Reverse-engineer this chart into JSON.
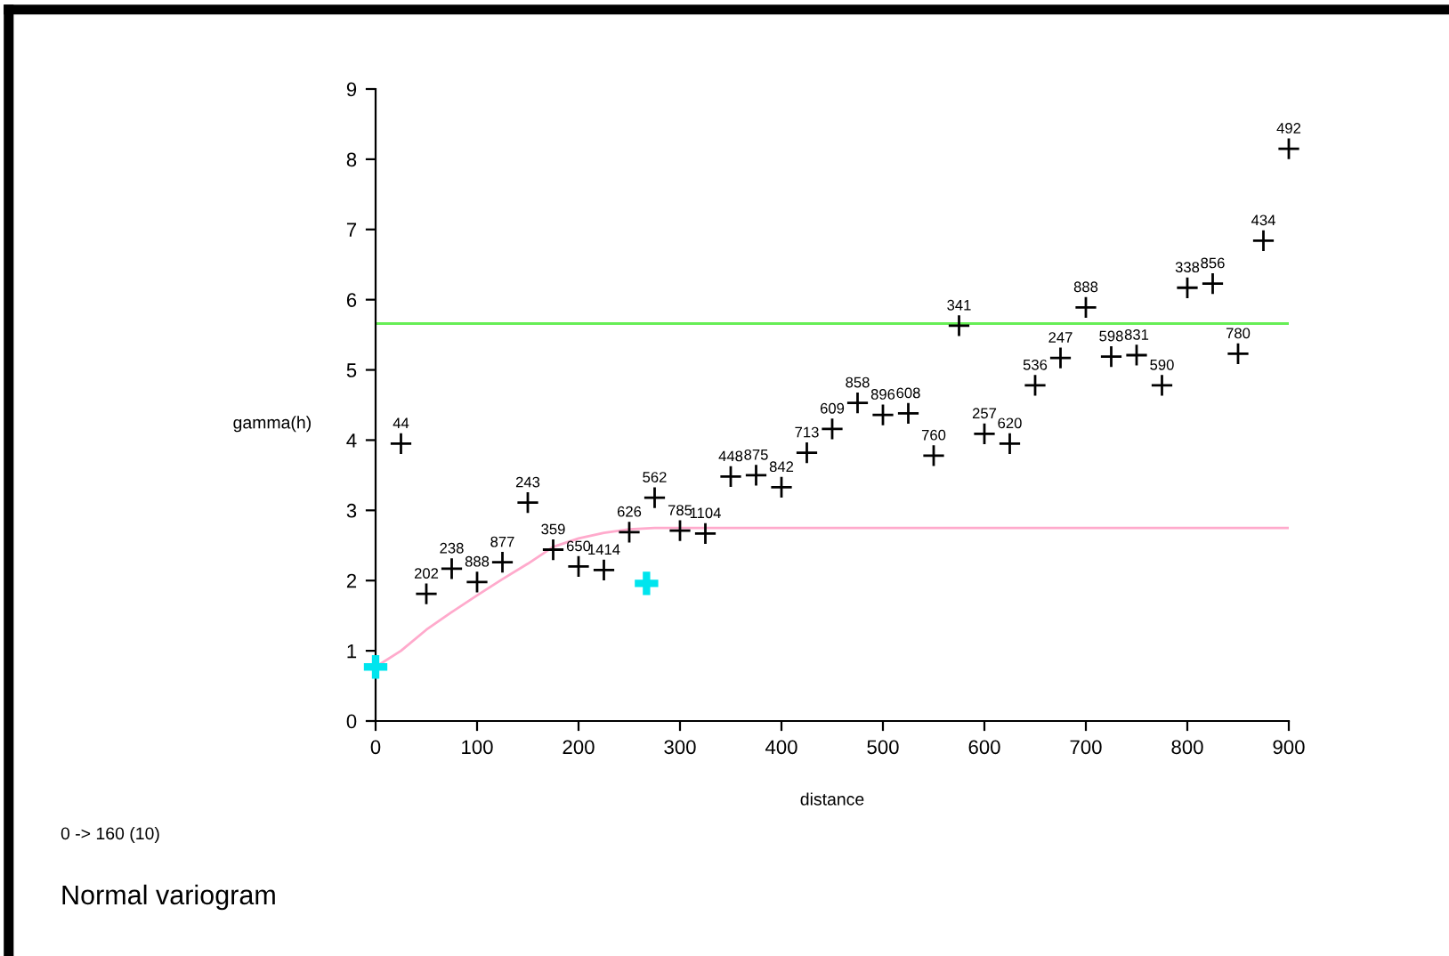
{
  "chart_data": {
    "type": "scatter",
    "xlabel": "distance",
    "ylabel": "gamma(h)",
    "xlim": [
      0,
      900
    ],
    "ylim": [
      0,
      9
    ],
    "xticks": [
      0,
      100,
      200,
      300,
      400,
      500,
      600,
      700,
      800,
      900
    ],
    "yticks": [
      0,
      1,
      2,
      3,
      4,
      5,
      6,
      7,
      8,
      9
    ],
    "grid": false,
    "legend": false,
    "marker": "cross",
    "series": [
      {
        "color": "#000000",
        "x": [
          25,
          50,
          75,
          100,
          125,
          150,
          175,
          200,
          225,
          250,
          275,
          300,
          325,
          350,
          375,
          400,
          425,
          450,
          475,
          500,
          525,
          550,
          575,
          600,
          625,
          650,
          675,
          700,
          725,
          750,
          775,
          800,
          825,
          850,
          875,
          900
        ],
        "values": [
          3.95,
          1.81,
          2.17,
          1.98,
          2.26,
          3.11,
          2.44,
          2.2,
          2.15,
          2.69,
          3.18,
          2.71,
          2.67,
          3.48,
          3.5,
          3.33,
          3.82,
          4.16,
          4.53,
          4.36,
          4.38,
          3.78,
          5.63,
          4.09,
          3.95,
          4.78,
          5.17,
          5.89,
          5.19,
          5.21,
          4.78,
          6.17,
          6.23,
          5.23,
          6.84,
          8.15
        ]
      },
      {
        "color": "#00e5ee",
        "x": [
          0,
          267
        ],
        "values": [
          0.77,
          1.96
        ]
      },
      {
        "type": "line",
        "color": "#ffaacc",
        "marker": "none",
        "x": [
          0,
          25,
          50,
          75,
          100,
          125,
          150,
          175,
          200,
          225,
          250,
          275,
          300,
          900
        ],
        "values": [
          0.77,
          1.0,
          1.3,
          1.55,
          1.79,
          2.02,
          2.24,
          2.48,
          2.6,
          2.68,
          2.73,
          2.75,
          2.75,
          2.75
        ]
      }
    ],
    "ref_lines": [
      {
        "axis": "y",
        "value": 5.66,
        "color": "#66ee55"
      }
    ],
    "annotations": [
      {
        "text": "44",
        "x": 25,
        "y": 3.95
      },
      {
        "text": "202",
        "x": 50,
        "y": 1.81
      },
      {
        "text": "238",
        "x": 75,
        "y": 2.17
      },
      {
        "text": "888",
        "x": 100,
        "y": 1.98
      },
      {
        "text": "877",
        "x": 125,
        "y": 2.26
      },
      {
        "text": "243",
        "x": 150,
        "y": 3.11
      },
      {
        "text": "359",
        "x": 175,
        "y": 2.44
      },
      {
        "text": "650",
        "x": 200,
        "y": 2.2
      },
      {
        "text": "1414",
        "x": 225,
        "y": 2.15
      },
      {
        "text": "626",
        "x": 250,
        "y": 2.69
      },
      {
        "text": "562",
        "x": 275,
        "y": 3.18
      },
      {
        "text": "785",
        "x": 300,
        "y": 2.71
      },
      {
        "text": "1104",
        "x": 325,
        "y": 2.67
      },
      {
        "text": "448",
        "x": 350,
        "y": 3.48
      },
      {
        "text": "875",
        "x": 375,
        "y": 3.5
      },
      {
        "text": "842",
        "x": 400,
        "y": 3.33
      },
      {
        "text": "713",
        "x": 425,
        "y": 3.82
      },
      {
        "text": "609",
        "x": 450,
        "y": 4.16
      },
      {
        "text": "858",
        "x": 475,
        "y": 4.53
      },
      {
        "text": "896",
        "x": 500,
        "y": 4.36
      },
      {
        "text": "608",
        "x": 525,
        "y": 4.38
      },
      {
        "text": "760",
        "x": 550,
        "y": 3.78
      },
      {
        "text": "341",
        "x": 575,
        "y": 5.63
      },
      {
        "text": "257",
        "x": 600,
        "y": 4.09
      },
      {
        "text": "620",
        "x": 625,
        "y": 3.95
      },
      {
        "text": "536",
        "x": 650,
        "y": 4.78
      },
      {
        "text": "247",
        "x": 675,
        "y": 5.17
      },
      {
        "text": "888",
        "x": 700,
        "y": 5.89
      },
      {
        "text": "598",
        "x": 725,
        "y": 5.19
      },
      {
        "text": "831",
        "x": 750,
        "y": 5.21
      },
      {
        "text": "590",
        "x": 775,
        "y": 4.78
      },
      {
        "text": "338",
        "x": 800,
        "y": 6.17
      },
      {
        "text": "856",
        "x": 825,
        "y": 6.23
      },
      {
        "text": "780",
        "x": 850,
        "y": 5.23
      },
      {
        "text": "434",
        "x": 875,
        "y": 6.84
      },
      {
        "text": "492",
        "x": 900,
        "y": 8.15
      },
      "0 -> 160 (10)",
      "Normal variogram"
    ]
  }
}
